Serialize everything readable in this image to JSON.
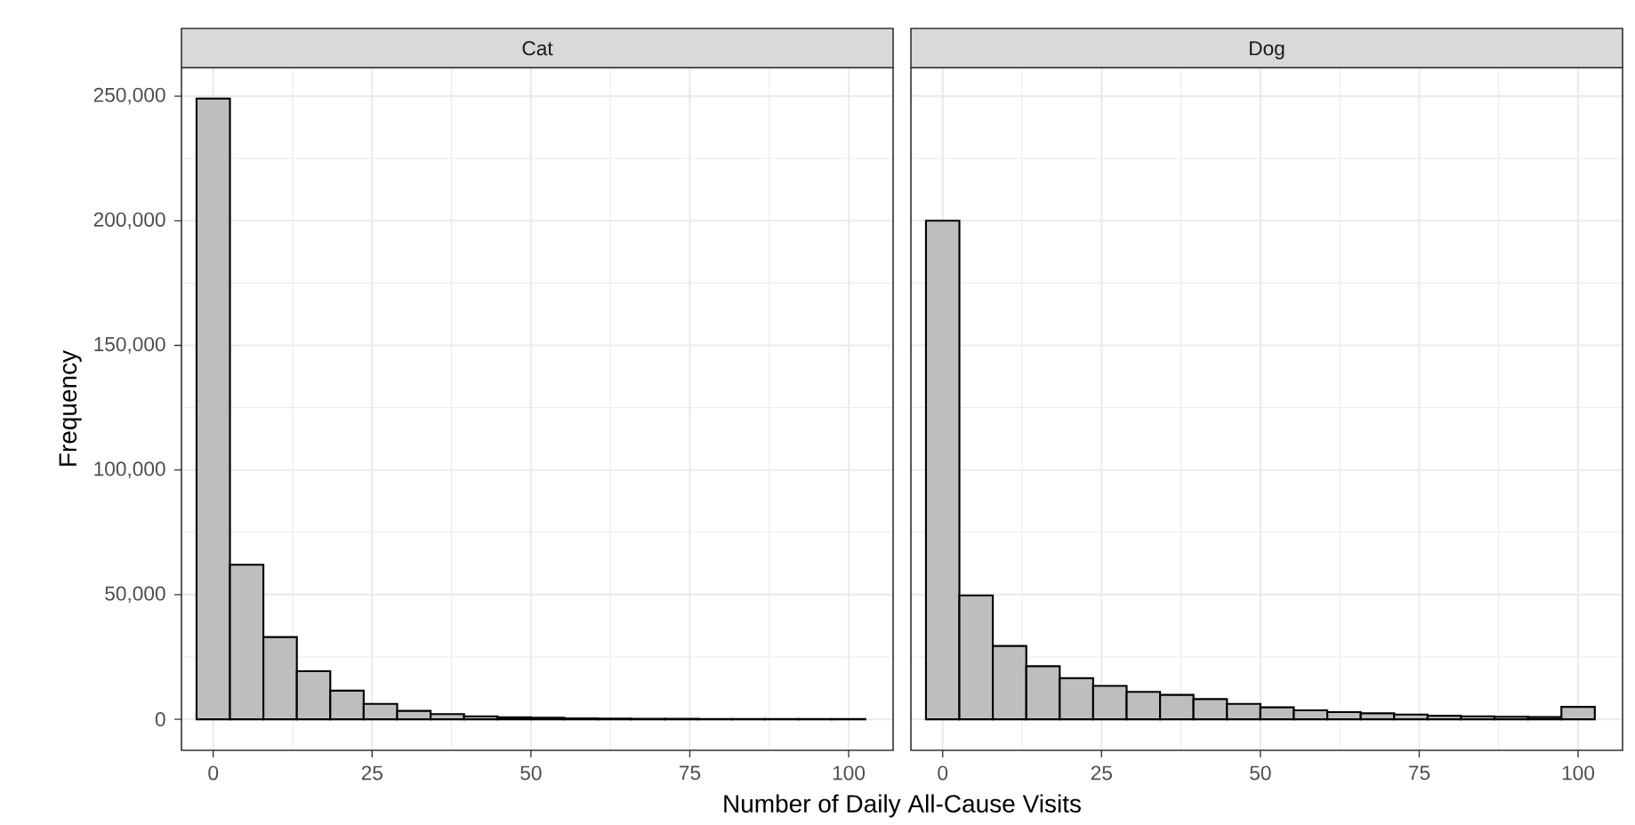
{
  "chart_data": [
    {
      "type": "histogram",
      "title": "Cat",
      "ylabel": "Frequency",
      "xlabel": "Number of Daily All-Cause Visits",
      "color": "#bebebe",
      "grid": true,
      "bins": [
        -2.63,
        2.63,
        7.89,
        13.16,
        18.42,
        23.68,
        28.95,
        34.21,
        39.47,
        44.74,
        50,
        55.26,
        60.53,
        65.79,
        71.05,
        76.32,
        81.58,
        86.84,
        92.11,
        97.37,
        102.63
      ],
      "values": [
        249000,
        62000,
        33000,
        19300,
        11500,
        6200,
        3400,
        2100,
        1200,
        800,
        600,
        400,
        300,
        200,
        200,
        100,
        100,
        100,
        100,
        100
      ],
      "xlim": [
        -5,
        107
      ],
      "ylim": [
        -12450,
        261450
      ],
      "xticks": [
        0,
        25,
        50,
        75,
        100
      ],
      "yticks": [
        0,
        {
          "value": 50000,
          "label": "50,000"
        },
        {
          "value": 100000,
          "label": "100,000"
        },
        {
          "value": 150000,
          "label": "150,000"
        },
        {
          "value": 200000,
          "label": "200,000"
        },
        {
          "value": 250000,
          "label": "250,000"
        }
      ]
    },
    {
      "type": "histogram",
      "title": "Dog",
      "color": "#bebebe",
      "grid": true,
      "tick_labels": "x",
      "bins": [
        -2.63,
        2.63,
        7.89,
        13.16,
        18.42,
        23.68,
        28.95,
        34.21,
        39.47,
        44.74,
        50,
        55.26,
        60.53,
        65.79,
        71.05,
        76.32,
        81.58,
        86.84,
        92.11,
        97.37,
        102.63
      ],
      "values": [
        200000,
        49700,
        29400,
        21300,
        16500,
        13400,
        11000,
        9800,
        8100,
        6200,
        4800,
        3600,
        2900,
        2400,
        1900,
        1400,
        1200,
        1000,
        900,
        5000
      ],
      "xlim": [
        -5,
        107
      ],
      "ylim": [
        -12450,
        261450
      ],
      "xticks": [
        0,
        25,
        50,
        75,
        100
      ],
      "yticks": [
        {
          "value": 0,
          "label": null
        },
        {
          "value": 50000,
          "label": null
        },
        {
          "value": 100000,
          "label": null
        },
        {
          "value": 150000,
          "label": null
        },
        {
          "value": 200000,
          "label": null
        },
        {
          "value": 250000,
          "label": null
        }
      ]
    }
  ]
}
